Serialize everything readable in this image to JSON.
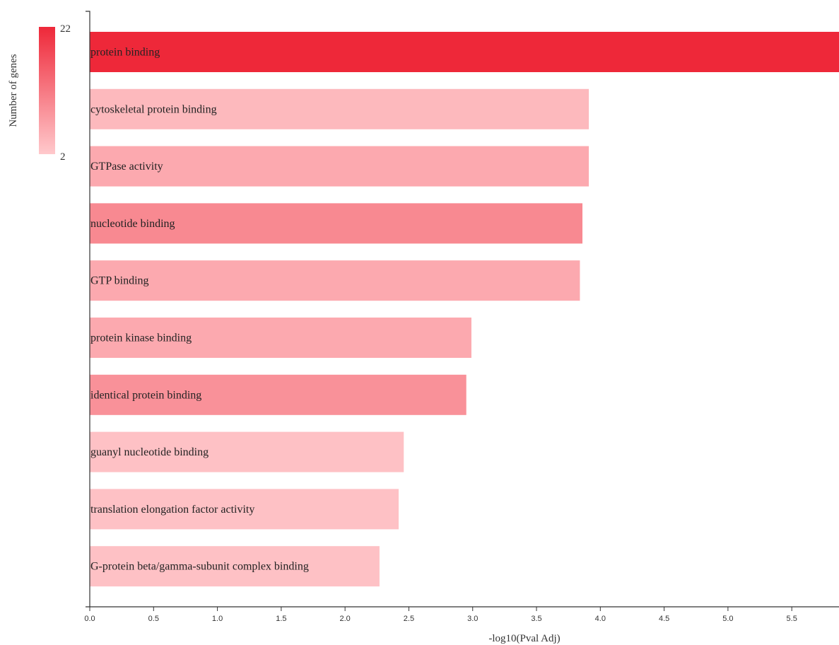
{
  "chart_data": {
    "type": "bar",
    "orientation": "horizontal",
    "categories": [
      "protein binding",
      "cytoskeletal protein binding",
      "GTPase activity",
      "nucleotide binding",
      "GTP binding",
      "protein kinase binding",
      "identical protein binding",
      "guanyl nucleotide binding",
      "translation elongation factor activity",
      "G-protein beta/gamma-subunit complex binding"
    ],
    "values": [
      5.87,
      3.91,
      3.91,
      3.86,
      3.84,
      2.99,
      2.95,
      2.46,
      2.42,
      2.27
    ],
    "gene_counts": [
      22,
      4,
      6,
      10,
      6,
      6,
      9,
      3,
      3,
      3
    ],
    "xlabel": "-log10(Pval Adj)",
    "ylabel": "",
    "xlim": [
      0,
      5.87
    ],
    "xticks": [
      "0.0",
      "0.5",
      "1.0",
      "1.5",
      "2.0",
      "2.5",
      "3.0",
      "3.5",
      "4.0",
      "4.5",
      "5.0",
      "5.5"
    ],
    "grid": false,
    "legend": {
      "title": "Number of genes",
      "min_label": "2",
      "max_label": "22",
      "min": 2,
      "max": 22,
      "placement": "top-left",
      "color_low": "#ffc9cc",
      "color_high": "#ee2839"
    }
  }
}
